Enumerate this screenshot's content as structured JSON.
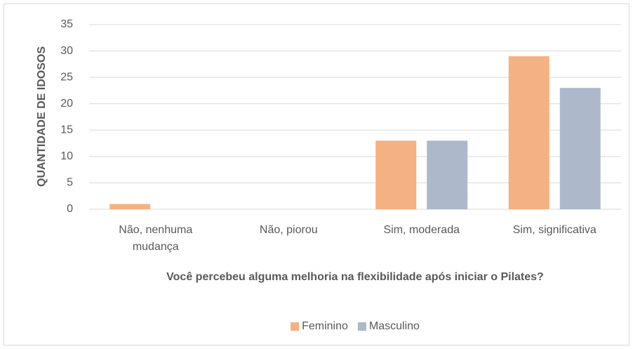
{
  "chart_data": {
    "type": "bar",
    "x_label": "Você percebeu alguma melhoria na flexibilidade após iniciar o Pilates?",
    "y_label": "QUANTIDADE DE IDOSOS",
    "categories": [
      "Não, nenhuma mudança",
      "Não, piorou",
      "Sim, moderada",
      "Sim, significativa"
    ],
    "series": [
      {
        "name": "Feminino",
        "color": "#f4b183",
        "values": [
          1,
          0,
          13,
          29
        ]
      },
      {
        "name": "Masculino",
        "color": "#adb9ca",
        "values": [
          0,
          0,
          13,
          23
        ]
      }
    ],
    "ylim": [
      0,
      35
    ],
    "yticks": [
      0,
      5,
      10,
      15,
      20,
      25,
      30,
      35
    ],
    "grid": true,
    "legend": "bottom"
  }
}
